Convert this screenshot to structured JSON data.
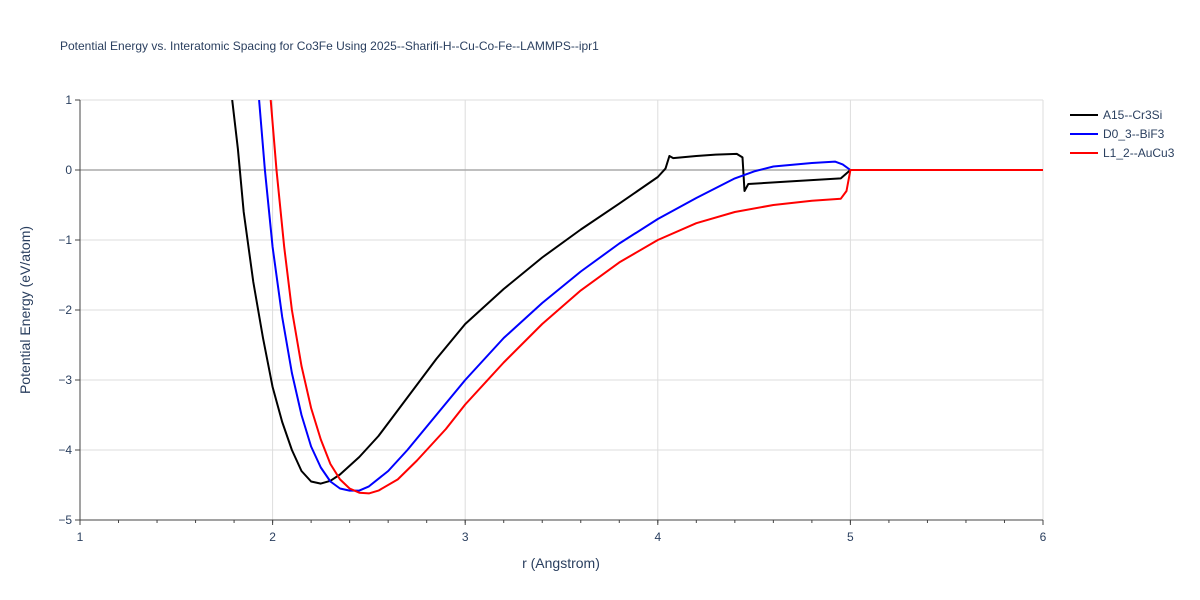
{
  "chart_data": {
    "type": "line",
    "title": "Potential Energy vs. Interatomic Spacing for Co3Fe Using 2025--Sharifi-H--Cu-Co-Fe--LAMMPS--ipr1",
    "xlabel": "r (Angstrom)",
    "ylabel": "Potential Energy (eV/atom)",
    "xlim": [
      1,
      6
    ],
    "ylim": [
      -5,
      1
    ],
    "x_ticks": [
      "1",
      "2",
      "3",
      "4",
      "5",
      "6"
    ],
    "y_ticks": [
      "−5",
      "−4",
      "−3",
      "−2",
      "−1",
      "0",
      "1"
    ],
    "grid": true,
    "legend_position": "top-right",
    "series": [
      {
        "name": "A15--Cr3Si",
        "color": "#000000",
        "points": [
          [
            1.79,
            1.0
          ],
          [
            1.82,
            0.3
          ],
          [
            1.85,
            -0.6
          ],
          [
            1.9,
            -1.6
          ],
          [
            1.95,
            -2.4
          ],
          [
            2.0,
            -3.1
          ],
          [
            2.05,
            -3.6
          ],
          [
            2.1,
            -4.0
          ],
          [
            2.15,
            -4.3
          ],
          [
            2.2,
            -4.45
          ],
          [
            2.25,
            -4.48
          ],
          [
            2.3,
            -4.44
          ],
          [
            2.35,
            -4.35
          ],
          [
            2.45,
            -4.1
          ],
          [
            2.55,
            -3.8
          ],
          [
            2.7,
            -3.25
          ],
          [
            2.85,
            -2.7
          ],
          [
            3.0,
            -2.2
          ],
          [
            3.2,
            -1.7
          ],
          [
            3.4,
            -1.25
          ],
          [
            3.6,
            -0.85
          ],
          [
            3.8,
            -0.48
          ],
          [
            4.0,
            -0.1
          ],
          [
            4.04,
            0.02
          ],
          [
            4.06,
            0.2
          ],
          [
            4.08,
            0.17
          ],
          [
            4.2,
            0.2
          ],
          [
            4.3,
            0.22
          ],
          [
            4.41,
            0.23
          ],
          [
            4.44,
            0.18
          ],
          [
            4.45,
            -0.3
          ],
          [
            4.47,
            -0.2
          ],
          [
            4.7,
            -0.16
          ],
          [
            4.95,
            -0.12
          ],
          [
            5.0,
            0.0
          ],
          [
            6.0,
            0.0
          ]
        ]
      },
      {
        "name": "D0_3--BiF3",
        "color": "#0000ff",
        "points": [
          [
            1.93,
            1.0
          ],
          [
            1.96,
            0.0
          ],
          [
            2.0,
            -1.1
          ],
          [
            2.05,
            -2.1
          ],
          [
            2.1,
            -2.9
          ],
          [
            2.15,
            -3.5
          ],
          [
            2.2,
            -3.95
          ],
          [
            2.25,
            -4.25
          ],
          [
            2.3,
            -4.45
          ],
          [
            2.35,
            -4.55
          ],
          [
            2.4,
            -4.58
          ],
          [
            2.45,
            -4.58
          ],
          [
            2.5,
            -4.52
          ],
          [
            2.6,
            -4.3
          ],
          [
            2.7,
            -4.0
          ],
          [
            2.85,
            -3.5
          ],
          [
            3.0,
            -3.0
          ],
          [
            3.2,
            -2.4
          ],
          [
            3.4,
            -1.9
          ],
          [
            3.6,
            -1.45
          ],
          [
            3.8,
            -1.05
          ],
          [
            4.0,
            -0.7
          ],
          [
            4.2,
            -0.4
          ],
          [
            4.4,
            -0.12
          ],
          [
            4.5,
            -0.02
          ],
          [
            4.6,
            0.05
          ],
          [
            4.8,
            0.1
          ],
          [
            4.92,
            0.12
          ],
          [
            4.96,
            0.08
          ],
          [
            5.0,
            0.0
          ],
          [
            6.0,
            0.0
          ]
        ]
      },
      {
        "name": "L1_2--AuCu3",
        "color": "#ff0000",
        "points": [
          [
            1.99,
            1.0
          ],
          [
            2.02,
            0.0
          ],
          [
            2.06,
            -1.1
          ],
          [
            2.1,
            -2.0
          ],
          [
            2.15,
            -2.8
          ],
          [
            2.2,
            -3.4
          ],
          [
            2.25,
            -3.85
          ],
          [
            2.3,
            -4.2
          ],
          [
            2.35,
            -4.42
          ],
          [
            2.4,
            -4.55
          ],
          [
            2.45,
            -4.61
          ],
          [
            2.5,
            -4.62
          ],
          [
            2.55,
            -4.58
          ],
          [
            2.65,
            -4.42
          ],
          [
            2.75,
            -4.15
          ],
          [
            2.9,
            -3.7
          ],
          [
            3.0,
            -3.35
          ],
          [
            3.2,
            -2.75
          ],
          [
            3.4,
            -2.2
          ],
          [
            3.6,
            -1.72
          ],
          [
            3.8,
            -1.32
          ],
          [
            4.0,
            -1.0
          ],
          [
            4.2,
            -0.76
          ],
          [
            4.4,
            -0.6
          ],
          [
            4.6,
            -0.5
          ],
          [
            4.8,
            -0.44
          ],
          [
            4.95,
            -0.41
          ],
          [
            4.98,
            -0.3
          ],
          [
            5.0,
            0.0
          ],
          [
            6.0,
            0.0
          ]
        ]
      }
    ]
  }
}
